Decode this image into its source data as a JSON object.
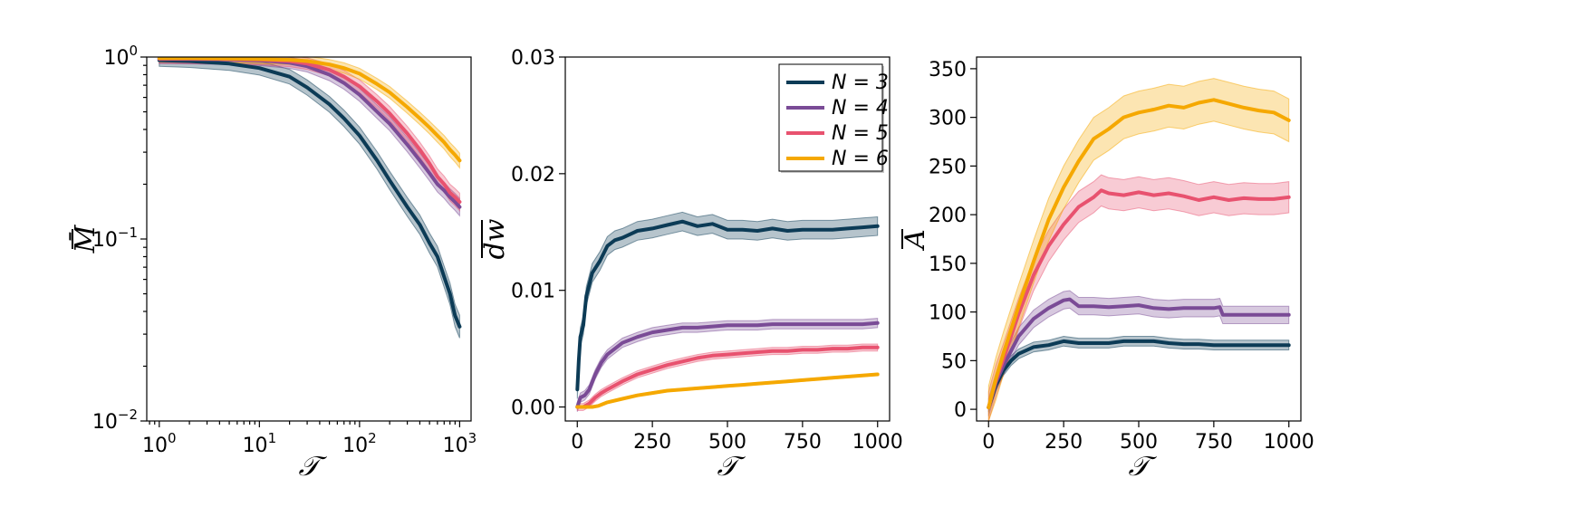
{
  "chart_data": [
    {
      "type": "line",
      "title": "",
      "xlabel": "𝒯",
      "ylabel": "M̄",
      "xscale": "log",
      "yscale": "log",
      "xlim": [
        0.75,
        1300
      ],
      "ylim": [
        0.01,
        1.0
      ],
      "x_ticks": [
        {
          "value": 1,
          "base": "10",
          "exp": "0"
        },
        {
          "value": 10,
          "base": "10",
          "exp": "1"
        },
        {
          "value": 100,
          "base": "10",
          "exp": "2"
        },
        {
          "value": 1000,
          "base": "10",
          "exp": "3"
        }
      ],
      "y_ticks": [
        {
          "value": 1.0,
          "base": "10",
          "exp": "0"
        },
        {
          "value": 0.1,
          "base": "10",
          "exp": "−1"
        },
        {
          "value": 0.01,
          "base": "10",
          "exp": "−2"
        }
      ],
      "series": [
        {
          "name": "N = 3",
          "color": "#0c3b56",
          "x": [
            1,
            2,
            5,
            10,
            20,
            30,
            50,
            70,
            100,
            150,
            200,
            300,
            400,
            500,
            600,
            700,
            800,
            900,
            1000
          ],
          "y": [
            0.96,
            0.95,
            0.92,
            0.87,
            0.78,
            0.68,
            0.55,
            0.46,
            0.37,
            0.27,
            0.21,
            0.15,
            0.12,
            0.095,
            0.08,
            0.062,
            0.05,
            0.038,
            0.033
          ],
          "band_rel": 0.08
        },
        {
          "name": "N = 4",
          "color": "#7a4b96",
          "x": [
            1,
            2,
            5,
            10,
            20,
            30,
            50,
            70,
            100,
            150,
            200,
            300,
            400,
            500,
            600,
            700,
            800,
            900,
            1000
          ],
          "y": [
            0.975,
            0.975,
            0.97,
            0.96,
            0.93,
            0.89,
            0.8,
            0.72,
            0.62,
            0.5,
            0.43,
            0.33,
            0.27,
            0.23,
            0.2,
            0.185,
            0.17,
            0.16,
            0.15
          ],
          "band_rel": 0.06
        },
        {
          "name": "N = 5",
          "color": "#e8526f",
          "x": [
            1,
            2,
            5,
            10,
            20,
            30,
            50,
            70,
            100,
            150,
            200,
            300,
            400,
            500,
            600,
            700,
            800,
            900,
            1000
          ],
          "y": [
            0.98,
            0.98,
            0.975,
            0.97,
            0.95,
            0.92,
            0.85,
            0.78,
            0.69,
            0.57,
            0.49,
            0.38,
            0.31,
            0.26,
            0.22,
            0.2,
            0.18,
            0.17,
            0.16
          ],
          "band_rel": 0.06
        },
        {
          "name": "N = 6",
          "color": "#f5a800",
          "x": [
            1,
            2,
            5,
            10,
            20,
            30,
            50,
            70,
            100,
            150,
            200,
            300,
            400,
            500,
            600,
            700,
            800,
            900,
            1000
          ],
          "y": [
            0.985,
            0.985,
            0.98,
            0.975,
            0.965,
            0.95,
            0.91,
            0.87,
            0.81,
            0.71,
            0.64,
            0.53,
            0.46,
            0.41,
            0.37,
            0.34,
            0.31,
            0.29,
            0.27
          ],
          "band_rel": 0.05
        }
      ]
    },
    {
      "type": "line",
      "title": "",
      "xlabel": "𝒯",
      "ylabel": "dw",
      "xlim": [
        -40,
        1040
      ],
      "ylim": [
        -0.0012,
        0.03
      ],
      "x_ticks": [
        {
          "value": 0,
          "label": "0"
        },
        {
          "value": 250,
          "label": "250"
        },
        {
          "value": 500,
          "label": "500"
        },
        {
          "value": 750,
          "label": "750"
        },
        {
          "value": 1000,
          "label": "1000"
        }
      ],
      "y_ticks": [
        {
          "value": 0.0,
          "label": "0.00"
        },
        {
          "value": 0.01,
          "label": "0.01"
        },
        {
          "value": 0.02,
          "label": "0.02"
        },
        {
          "value": 0.03,
          "label": "0.03"
        }
      ],
      "legend_position": "top-right",
      "series": [
        {
          "name": "N = 3",
          "label": "N = 3",
          "color": "#0c3b56",
          "x": [
            0,
            5,
            10,
            20,
            30,
            50,
            75,
            100,
            125,
            150,
            200,
            250,
            300,
            350,
            400,
            450,
            500,
            550,
            600,
            650,
            700,
            750,
            800,
            850,
            900,
            950,
            1000
          ],
          "y": [
            0.0015,
            0.004,
            0.006,
            0.007,
            0.0095,
            0.0115,
            0.0125,
            0.0138,
            0.0143,
            0.0145,
            0.0151,
            0.0153,
            0.0156,
            0.0159,
            0.0155,
            0.0157,
            0.0152,
            0.0152,
            0.0151,
            0.0153,
            0.0151,
            0.0152,
            0.0152,
            0.0152,
            0.0153,
            0.0154,
            0.0155
          ],
          "band": 0.0008
        },
        {
          "name": "N = 4",
          "label": "N = 4",
          "color": "#7a4b96",
          "x": [
            0,
            10,
            25,
            40,
            60,
            80,
            100,
            150,
            200,
            250,
            300,
            350,
            400,
            450,
            500,
            550,
            600,
            650,
            700,
            750,
            800,
            850,
            900,
            950,
            1000
          ],
          "y": [
            0.0,
            0.0008,
            0.001,
            0.0015,
            0.0028,
            0.0038,
            0.0045,
            0.0055,
            0.006,
            0.0064,
            0.0066,
            0.0068,
            0.0068,
            0.0069,
            0.007,
            0.007,
            0.007,
            0.0071,
            0.0071,
            0.0071,
            0.0071,
            0.0071,
            0.0071,
            0.0071,
            0.0072
          ],
          "band": 0.0004
        },
        {
          "name": "N = 5",
          "label": "N = 5",
          "color": "#e8526f",
          "x": [
            0,
            20,
            40,
            60,
            80,
            100,
            150,
            200,
            250,
            300,
            350,
            400,
            450,
            500,
            550,
            600,
            650,
            700,
            750,
            800,
            850,
            900,
            950,
            1000
          ],
          "y": [
            0.0,
            0.0,
            0.0003,
            0.0008,
            0.0012,
            0.0015,
            0.0022,
            0.0028,
            0.0032,
            0.0036,
            0.0039,
            0.0042,
            0.0044,
            0.0045,
            0.0046,
            0.0047,
            0.0048,
            0.0048,
            0.0049,
            0.0049,
            0.005,
            0.005,
            0.0051,
            0.0051
          ],
          "band": 0.0003
        },
        {
          "name": "N = 6",
          "label": "N = 6",
          "color": "#f5a800",
          "x": [
            0,
            20,
            50,
            70,
            80,
            100,
            150,
            200,
            250,
            300,
            350,
            400,
            450,
            500,
            550,
            600,
            650,
            700,
            750,
            800,
            850,
            900,
            950,
            1000
          ],
          "y": [
            0.0,
            0.0,
            0.0,
            0.0001,
            0.0002,
            0.0004,
            0.0007,
            0.001,
            0.0012,
            0.0014,
            0.0015,
            0.0016,
            0.0017,
            0.0018,
            0.0019,
            0.002,
            0.0021,
            0.0022,
            0.0023,
            0.0024,
            0.0025,
            0.0026,
            0.0027,
            0.0028
          ],
          "band": 0.0001
        }
      ]
    },
    {
      "type": "line",
      "title": "",
      "xlabel": "𝒯",
      "ylabel": "A",
      "xlim": [
        -40,
        1040
      ],
      "ylim": [
        -12,
        362
      ],
      "x_ticks": [
        {
          "value": 0,
          "label": "0"
        },
        {
          "value": 250,
          "label": "250"
        },
        {
          "value": 500,
          "label": "500"
        },
        {
          "value": 750,
          "label": "750"
        },
        {
          "value": 1000,
          "label": "1000"
        }
      ],
      "y_ticks": [
        {
          "value": 0,
          "label": "0"
        },
        {
          "value": 50,
          "label": "50"
        },
        {
          "value": 100,
          "label": "100"
        },
        {
          "value": 150,
          "label": "150"
        },
        {
          "value": 200,
          "label": "200"
        },
        {
          "value": 250,
          "label": "250"
        },
        {
          "value": 300,
          "label": "300"
        },
        {
          "value": 350,
          "label": "350"
        }
      ],
      "series": [
        {
          "name": "N = 3",
          "color": "#0c3b56",
          "x": [
            0,
            25,
            50,
            75,
            100,
            150,
            200,
            250,
            300,
            350,
            400,
            450,
            500,
            550,
            600,
            650,
            700,
            750,
            800,
            850,
            900,
            950,
            1000
          ],
          "y": [
            2,
            25,
            40,
            50,
            57,
            64,
            66,
            70,
            68,
            68,
            68,
            70,
            70,
            70,
            68,
            67,
            67,
            66,
            66,
            66,
            66,
            66,
            66
          ],
          "band": 5
        },
        {
          "name": "N = 4",
          "color": "#7a4b96",
          "x": [
            0,
            25,
            50,
            75,
            100,
            150,
            200,
            250,
            270,
            300,
            350,
            400,
            450,
            500,
            550,
            600,
            650,
            700,
            750,
            770,
            780,
            800,
            850,
            900,
            950,
            1000
          ],
          "y": [
            2,
            28,
            45,
            60,
            75,
            93,
            104,
            112,
            113,
            106,
            106,
            105,
            106,
            107,
            104,
            103,
            104,
            104,
            104,
            105,
            97,
            97,
            97,
            97,
            97,
            97
          ],
          "band": 9
        },
        {
          "name": "N = 5",
          "color": "#e8526f",
          "x": [
            0,
            25,
            50,
            75,
            100,
            150,
            200,
            250,
            300,
            350,
            375,
            400,
            450,
            500,
            550,
            600,
            650,
            700,
            750,
            800,
            850,
            900,
            950,
            1000
          ],
          "y": [
            2,
            30,
            52,
            75,
            98,
            138,
            168,
            190,
            208,
            218,
            225,
            222,
            220,
            223,
            220,
            222,
            219,
            215,
            218,
            215,
            217,
            216,
            216,
            218
          ],
          "band": 16
        },
        {
          "name": "N = 6",
          "color": "#f5a800",
          "x": [
            0,
            25,
            50,
            75,
            100,
            150,
            200,
            250,
            300,
            350,
            400,
            450,
            500,
            550,
            600,
            650,
            700,
            750,
            800,
            850,
            900,
            950,
            1000
          ],
          "y": [
            2,
            32,
            58,
            82,
            106,
            152,
            195,
            228,
            255,
            278,
            288,
            300,
            305,
            308,
            312,
            310,
            315,
            318,
            314,
            310,
            307,
            305,
            297
          ],
          "band": 22
        }
      ]
    }
  ]
}
